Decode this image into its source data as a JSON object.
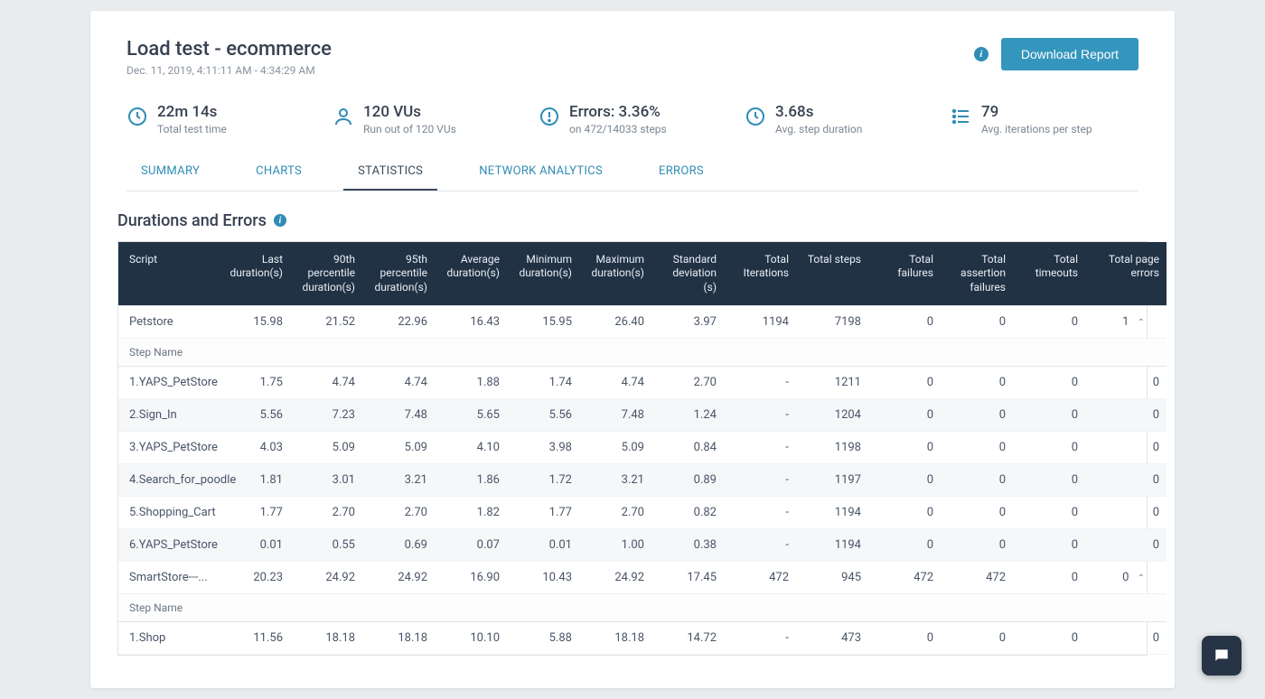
{
  "header": {
    "title": "Load test - ecommerce",
    "subtitle": "Dec. 11, 2019, 4:11:11 AM - 4:34:29 AM",
    "download_button": "Download Report"
  },
  "metrics": [
    {
      "icon": "clock",
      "value": "22m 14s",
      "label": "Total test time"
    },
    {
      "icon": "user",
      "value": "120 VUs",
      "label": "Run out of 120 VUs"
    },
    {
      "icon": "alert",
      "value": "Errors: 3.36%",
      "label": "on 472/14033 steps"
    },
    {
      "icon": "clock",
      "value": "3.68s",
      "label": "Avg. step duration"
    },
    {
      "icon": "list",
      "value": "79",
      "label": "Avg. iterations per step"
    }
  ],
  "tabs": {
    "items": [
      "SUMMARY",
      "CHARTS",
      "STATISTICS",
      "NETWORK ANALYTICS",
      "ERRORS"
    ],
    "active_index": 2
  },
  "section": {
    "title": "Durations and Errors"
  },
  "table": {
    "columns": [
      "Script",
      "Last duration(s)",
      "90th percentile duration(s)",
      "95th percentile duration(s)",
      "Average duration(s)",
      "Minimum duration(s)",
      "Maximum duration(s)",
      "Standard deviation (s)",
      "Total Iterations",
      "Total steps",
      "Total failures",
      "Total assertion failures",
      "Total timeouts",
      "Total page errors"
    ],
    "step_name_label": "Step Name",
    "scripts": [
      {
        "name": "Petstore",
        "row": [
          "15.98",
          "21.52",
          "22.96",
          "16.43",
          "15.95",
          "26.40",
          "3.97",
          "1194",
          "7198",
          "0",
          "0",
          "0",
          "1"
        ],
        "steps": [
          {
            "name": "1.YAPS_PetStore",
            "row": [
              "1.75",
              "4.74",
              "4.74",
              "1.88",
              "1.74",
              "4.74",
              "2.70",
              "-",
              "1211",
              "0",
              "0",
              "0",
              "0"
            ]
          },
          {
            "name": "2.Sign_In",
            "row": [
              "5.56",
              "7.23",
              "7.48",
              "5.65",
              "5.56",
              "7.48",
              "1.24",
              "-",
              "1204",
              "0",
              "0",
              "0",
              "0"
            ]
          },
          {
            "name": "3.YAPS_PetStore",
            "row": [
              "4.03",
              "5.09",
              "5.09",
              "4.10",
              "3.98",
              "5.09",
              "0.84",
              "-",
              "1198",
              "0",
              "0",
              "0",
              "0"
            ]
          },
          {
            "name": "4.Search_for_poodle",
            "row": [
              "1.81",
              "3.01",
              "3.21",
              "1.86",
              "1.72",
              "3.21",
              "0.89",
              "-",
              "1197",
              "0",
              "0",
              "0",
              "0"
            ]
          },
          {
            "name": "5.Shopping_Cart",
            "row": [
              "1.77",
              "2.70",
              "2.70",
              "1.82",
              "1.77",
              "2.70",
              "0.82",
              "-",
              "1194",
              "0",
              "0",
              "0",
              "0"
            ]
          },
          {
            "name": "6.YAPS_PetStore",
            "row": [
              "0.01",
              "0.55",
              "0.69",
              "0.07",
              "0.01",
              "1.00",
              "0.38",
              "-",
              "1194",
              "0",
              "0",
              "0",
              "0"
            ]
          }
        ]
      },
      {
        "name": "SmartStore---...",
        "row": [
          "20.23",
          "24.92",
          "24.92",
          "16.90",
          "10.43",
          "24.92",
          "17.45",
          "472",
          "945",
          "472",
          "472",
          "0",
          "0"
        ],
        "steps": [
          {
            "name": "1.Shop",
            "row": [
              "11.56",
              "18.18",
              "18.18",
              "10.10",
              "5.88",
              "18.18",
              "14.72",
              "-",
              "473",
              "0",
              "0",
              "0",
              "0"
            ]
          }
        ]
      }
    ]
  },
  "colors": {
    "accent": "#2f8db5",
    "button": "#3596bd",
    "header_bg": "#223245",
    "page_bg": "#e8ecef"
  }
}
